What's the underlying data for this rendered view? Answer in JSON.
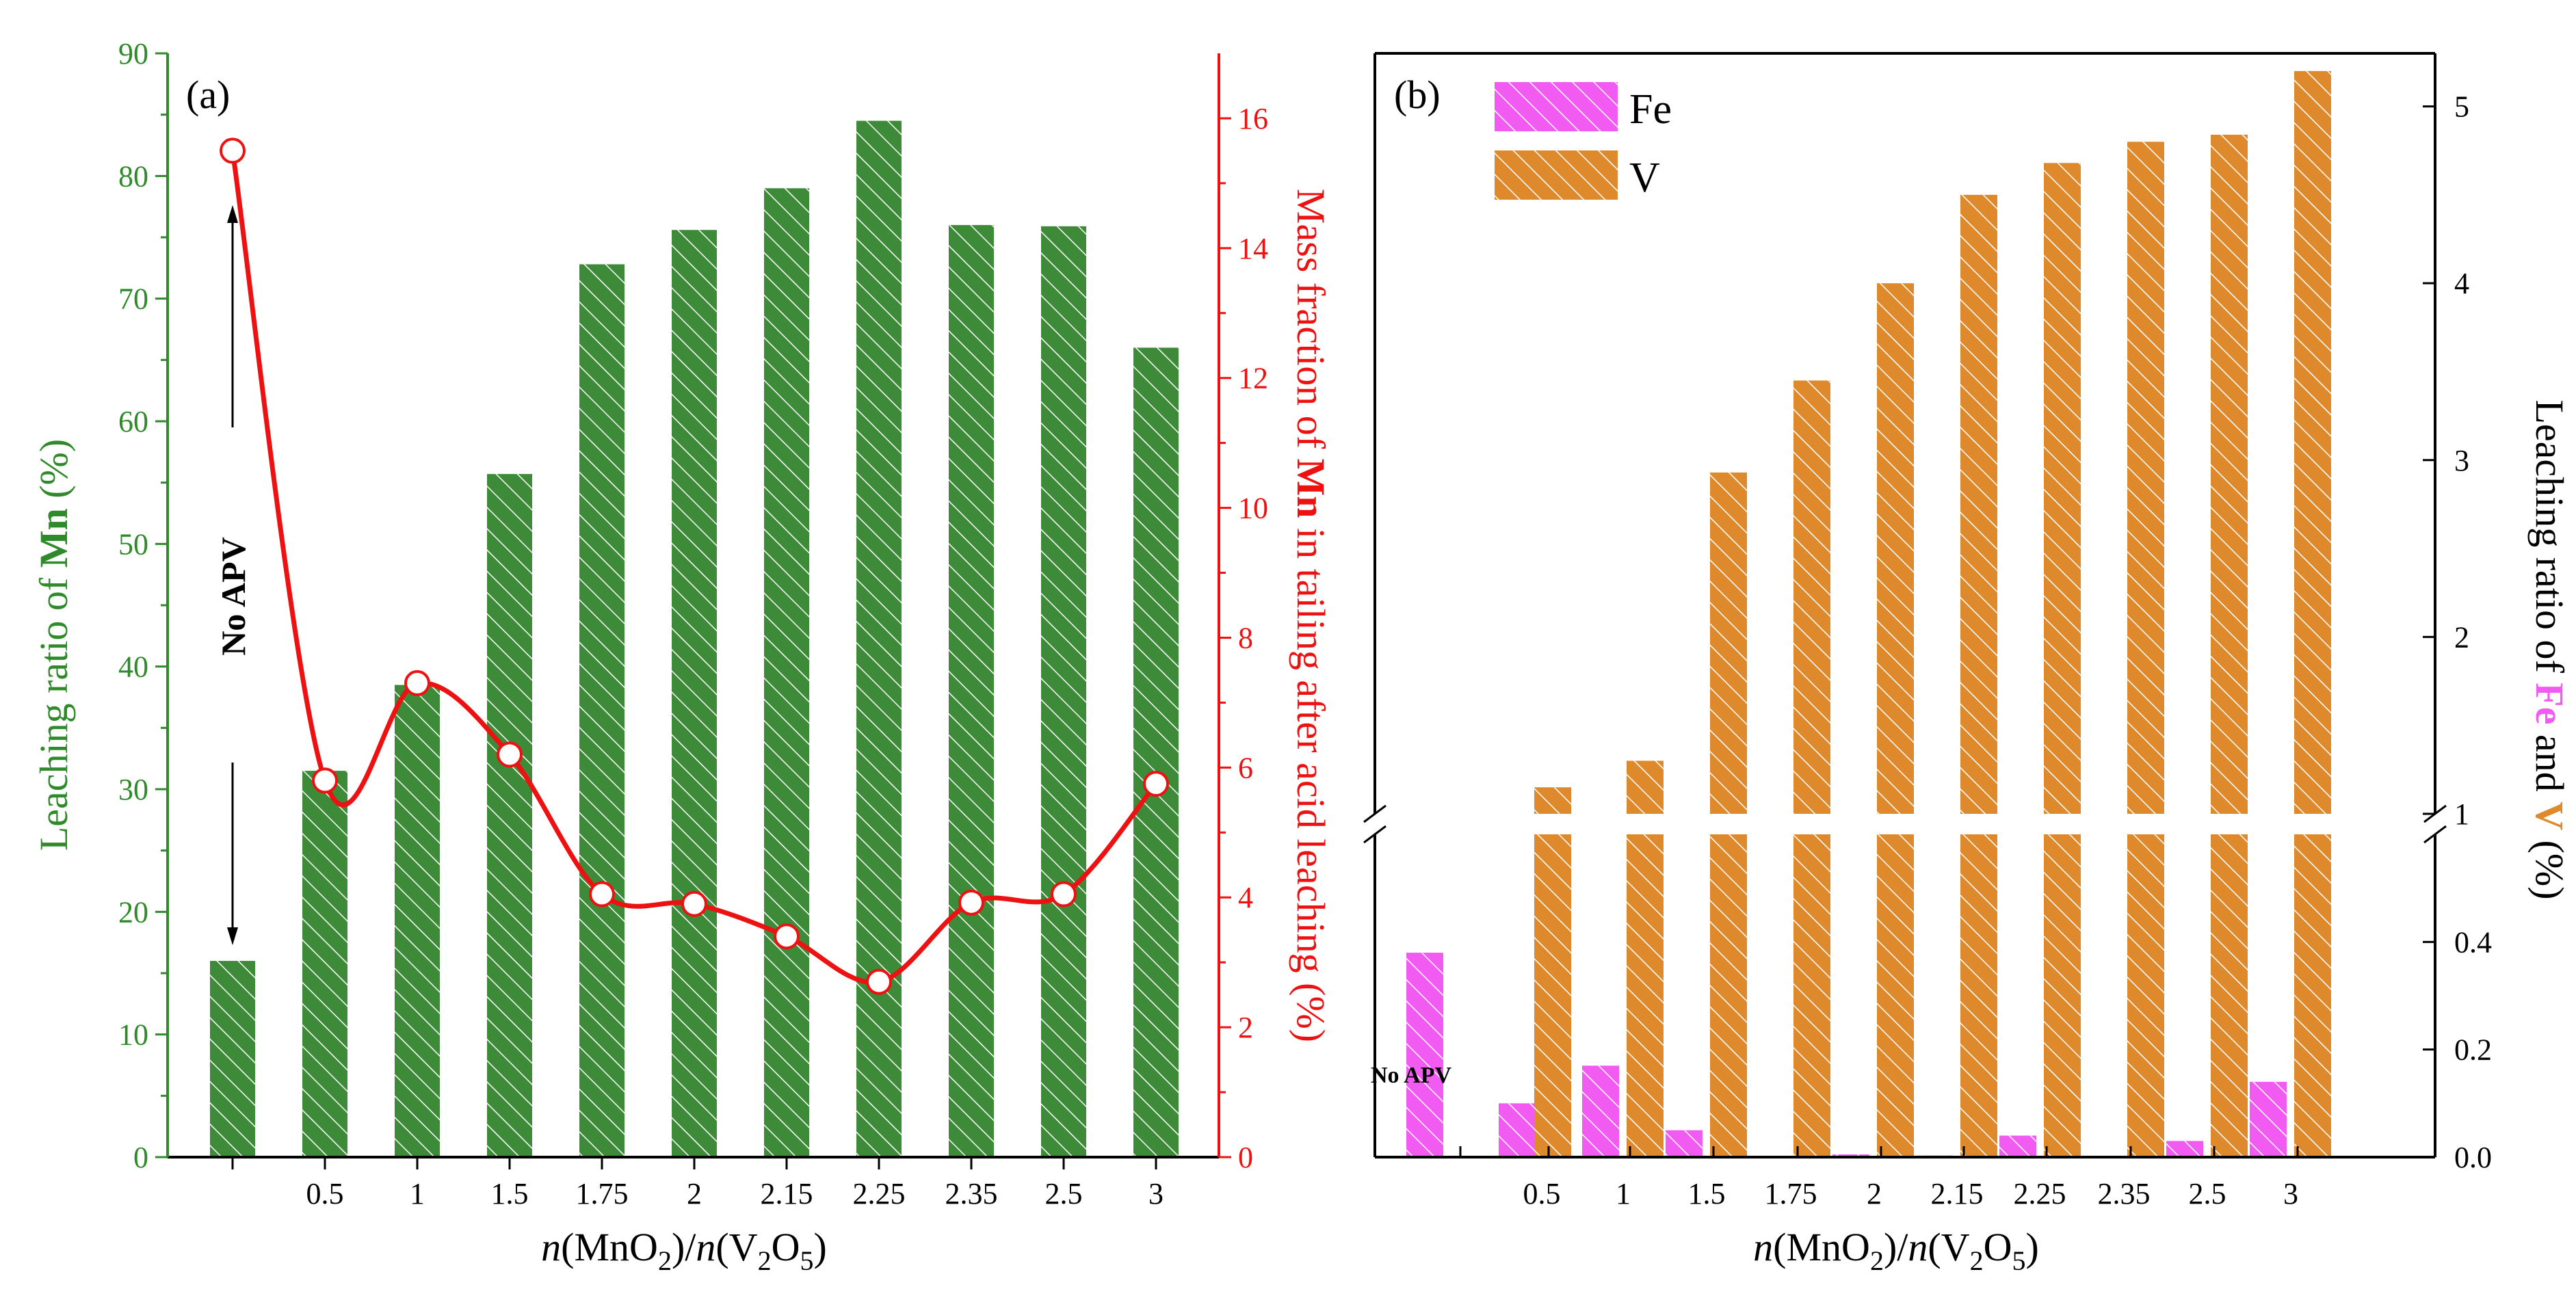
{
  "colors": {
    "mn_bar": "#3d8a38",
    "mn_axis": "#2f8a2a",
    "mass_line": "#ee1111",
    "fe_bar": "#f25bf2",
    "v_bar": "#de8a2c",
    "black": "#000000"
  },
  "chart_data": [
    {
      "type": "bar",
      "panel_label": "(a)",
      "categories": [
        "",
        "0.5",
        "1",
        "1.5",
        "1.75",
        "2",
        "2.15",
        "2.25",
        "2.35",
        "2.5",
        "3"
      ],
      "series": [
        {
          "name": "Leaching ratio of Mn",
          "axis": "left",
          "style": "hatched bar",
          "values": [
            16,
            31.5,
            38.5,
            55.7,
            72.8,
            75.6,
            79,
            84.5,
            76,
            75.9,
            66
          ]
        },
        {
          "name": "Mass fraction of Mn in tailing after acid leaching",
          "axis": "right",
          "style": "smoothed line with open circle markers",
          "values": [
            15.5,
            5.8,
            7.3,
            6.2,
            4.05,
            3.9,
            3.4,
            2.7,
            3.92,
            4.05,
            5.75
          ]
        }
      ],
      "xlabel": {
        "n1": "n",
        "part1": "(MnO",
        "sub1": "2",
        "part2": ")/",
        "n2": "n",
        "part3": "(V",
        "sub2": "2",
        "part4": "O",
        "sub3": "5",
        "part5": ")"
      },
      "ylabel_left": {
        "prefix": "Leaching ratio of ",
        "bold": "Mn",
        "suffix": " (%)"
      },
      "ylabel_right": {
        "prefix": "Mass fraction of ",
        "bold": "Mn",
        "suffix": " in tailing after acid leaching (%)"
      },
      "ylim_left": [
        0,
        90
      ],
      "yticks_left": [
        "0",
        "10",
        "20",
        "30",
        "40",
        "50",
        "60",
        "70",
        "80",
        "90"
      ],
      "ylim_right": [
        0,
        17
      ],
      "yticks_right": [
        "0",
        "2",
        "4",
        "6",
        "8",
        "10",
        "12",
        "14",
        "16"
      ],
      "annotation": "No APV"
    },
    {
      "type": "bar",
      "panel_label": "(b)",
      "categories": [
        "",
        "0.5",
        "1",
        "1.5",
        "1.75",
        "2",
        "2.15",
        "2.25",
        "2.35",
        "2.5",
        "3"
      ],
      "series": [
        {
          "name": "Fe",
          "values": [
            0.38,
            0.1,
            0.17,
            0.05,
            0,
            0.005,
            0.003,
            0.04,
            0,
            0.03,
            0.14
          ]
        },
        {
          "name": "V",
          "values": [
            0,
            1.15,
            1.3,
            2.93,
            3.45,
            4.0,
            4.5,
            4.68,
            4.8,
            4.84,
            5.2
          ]
        }
      ],
      "xlabel": {
        "n1": "n",
        "part1": "(MnO",
        "sub1": "2",
        "part2": ")/",
        "n2": "n",
        "part3": "(V",
        "sub2": "2",
        "part4": "O",
        "sub3": "5",
        "part5": ")"
      },
      "ylabel": {
        "prefix": "Leaching ratio of ",
        "fe": "Fe",
        "mid": " and ",
        "v": "V",
        "suffix": " (%)"
      },
      "axis_break": true,
      "ylim_lower": [
        0,
        0.6
      ],
      "yticks_lower": [
        "0.0",
        "0.2",
        "0.4"
      ],
      "ylim_upper": [
        1,
        5.3
      ],
      "yticks_upper": [
        "1",
        "2",
        "3",
        "4",
        "5"
      ],
      "legend": [
        "Fe",
        "V"
      ],
      "annotation": "No APV"
    }
  ]
}
